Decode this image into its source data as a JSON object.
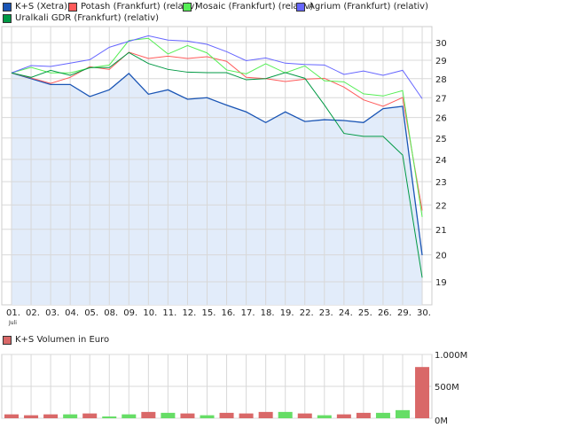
{
  "chart_data": [
    {
      "type": "line",
      "yscale": "log",
      "ylim": [
        18.3,
        30.6
      ],
      "yticks": [
        19,
        20,
        21,
        22,
        23,
        24,
        25,
        26,
        27,
        28,
        29,
        30
      ],
      "grid": true,
      "legend_placement": "top",
      "x": [
        "01.",
        "02.",
        "03.",
        "04.",
        "05.",
        "08.",
        "09.",
        "10.",
        "11.",
        "12.",
        "15.",
        "16.",
        "17.",
        "18.",
        "19.",
        "22.",
        "23.",
        "24.",
        "25.",
        "26.",
        "29.",
        "30."
      ],
      "x_sublabel": "Juli",
      "series": [
        {
          "name": "K+S (Xetra)",
          "color": "#1a55b5",
          "fill": "#e2ecfa",
          "values": [
            28.31,
            28.0,
            27.69,
            27.69,
            27.06,
            27.41,
            28.28,
            27.18,
            27.41,
            26.92,
            27.0,
            26.62,
            26.28,
            25.75,
            26.28,
            25.8,
            25.89,
            25.85,
            25.75,
            26.44,
            26.56,
            19.99
          ]
        },
        {
          "name": "Potash (Frankfurt) (relativ)",
          "color": "#ff5a5a",
          "values": [
            28.31,
            28.04,
            27.75,
            28.07,
            28.65,
            28.5,
            29.45,
            29.1,
            29.23,
            29.1,
            29.2,
            28.94,
            28.07,
            28.0,
            27.85,
            27.97,
            28.02,
            27.55,
            26.89,
            26.56,
            27.01,
            21.77
          ]
        },
        {
          "name": "Mosaic (Frankfurt) (relativ)",
          "color": "#55ee55",
          "values": [
            28.31,
            28.61,
            28.31,
            28.31,
            28.58,
            28.74,
            30.12,
            30.24,
            29.35,
            29.83,
            29.41,
            28.47,
            28.26,
            28.81,
            28.31,
            28.69,
            27.89,
            27.83,
            27.2,
            27.09,
            27.37,
            21.5
          ]
        },
        {
          "name": "Agrium (Frankfurt) (relativ)",
          "color": "#6666ff",
          "values": [
            28.31,
            28.71,
            28.66,
            28.84,
            29.03,
            29.73,
            30.07,
            30.39,
            30.14,
            30.08,
            29.9,
            29.48,
            28.98,
            29.13,
            28.84,
            28.77,
            28.74,
            28.23,
            28.41,
            28.18,
            28.45,
            26.95
          ]
        },
        {
          "name": "Uralkali GDR (Frankfurt) (relativ)",
          "color": "#009944",
          "values": [
            28.31,
            28.07,
            28.45,
            28.18,
            28.6,
            28.6,
            29.43,
            28.82,
            28.5,
            28.35,
            28.32,
            28.32,
            27.94,
            28.0,
            28.33,
            28.02,
            26.63,
            25.22,
            25.08,
            25.08,
            24.2,
            19.15
          ]
        }
      ]
    },
    {
      "type": "bar",
      "ylim": [
        0,
        1000
      ],
      "ytick_labels": [
        "0M",
        "500M",
        "1.000M"
      ],
      "yticks": [
        0,
        500,
        1000
      ],
      "grid": true,
      "legend_placement": "top-left",
      "series": [
        {
          "name": "K+S Volumen in Euro",
          "color": "#d96868",
          "values": [
            61,
            47,
            61,
            61,
            75,
            28,
            61,
            99,
            85,
            75,
            47,
            85,
            75,
            99,
            99,
            75,
            47,
            61,
            85,
            85,
            127,
            803
          ],
          "bar_colors": [
            "#d96868",
            "#d96868",
            "#d96868",
            "#66dd66",
            "#d96868",
            "#66dd66",
            "#66dd66",
            "#d96868",
            "#66dd66",
            "#d96868",
            "#66dd66",
            "#d96868",
            "#d96868",
            "#d96868",
            "#66dd66",
            "#d96868",
            "#66dd66",
            "#d96868",
            "#d96868",
            "#66dd66",
            "#66dd66",
            "#d96868"
          ]
        }
      ]
    }
  ]
}
